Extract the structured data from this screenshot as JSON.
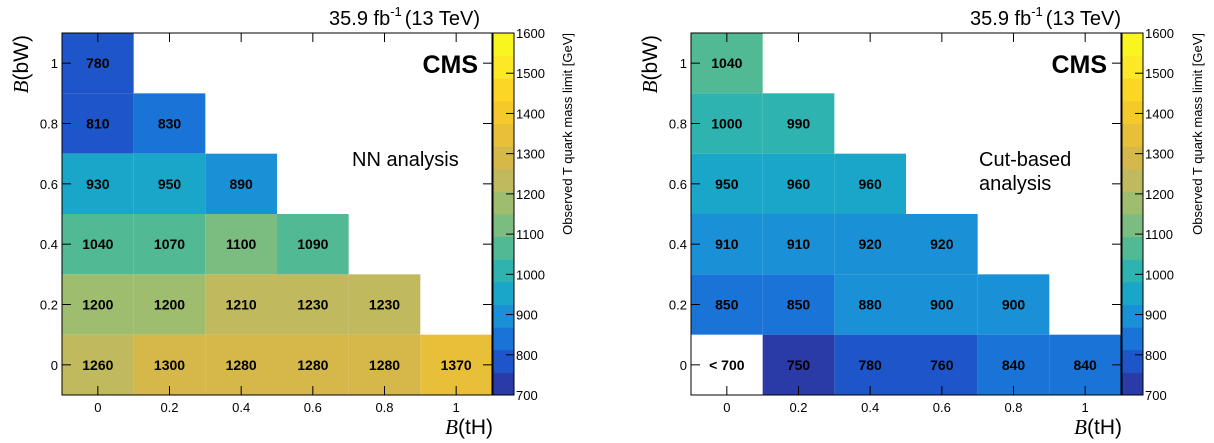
{
  "chart_data": [
    {
      "type": "heatmap",
      "experiment": "CMS",
      "luminosity": {
        "value": "35.9 fb",
        "exponent": "-1",
        "energy": "(13 TeV)"
      },
      "annotation": [
        "NN analysis"
      ],
      "xlabel": {
        "symbol": "B",
        "arg": "(tH)"
      },
      "ylabel": {
        "symbol": "B",
        "arg": "(bW)"
      },
      "xticks": [
        "0",
        "0.2",
        "0.4",
        "0.6",
        "0.8",
        "1"
      ],
      "yticks": [
        "0",
        "0.2",
        "0.4",
        "0.6",
        "0.8",
        "1"
      ],
      "colorbar_label": "Observed T quark mass limit [GeV]",
      "colorbar_ticks": [
        "700",
        "800",
        "900",
        "1000",
        "1100",
        "1200",
        "1300",
        "1400",
        "1500",
        "1600"
      ],
      "zlim": [
        700,
        1600
      ],
      "cells": [
        {
          "x": 0,
          "y": 1,
          "label": "780",
          "value": 780
        },
        {
          "x": 0,
          "y": 0.8,
          "label": "810",
          "value": 810
        },
        {
          "x": 0.2,
          "y": 0.8,
          "label": "830",
          "value": 830
        },
        {
          "x": 0,
          "y": 0.6,
          "label": "930",
          "value": 930
        },
        {
          "x": 0.2,
          "y": 0.6,
          "label": "950",
          "value": 950
        },
        {
          "x": 0.4,
          "y": 0.6,
          "label": "890",
          "value": 890
        },
        {
          "x": 0,
          "y": 0.4,
          "label": "1040",
          "value": 1040
        },
        {
          "x": 0.2,
          "y": 0.4,
          "label": "1070",
          "value": 1070
        },
        {
          "x": 0.4,
          "y": 0.4,
          "label": "1100",
          "value": 1100
        },
        {
          "x": 0.6,
          "y": 0.4,
          "label": "1090",
          "value": 1090
        },
        {
          "x": 0,
          "y": 0.2,
          "label": "1200",
          "value": 1200
        },
        {
          "x": 0.2,
          "y": 0.2,
          "label": "1200",
          "value": 1200
        },
        {
          "x": 0.4,
          "y": 0.2,
          "label": "1210",
          "value": 1210
        },
        {
          "x": 0.6,
          "y": 0.2,
          "label": "1230",
          "value": 1230
        },
        {
          "x": 0.8,
          "y": 0.2,
          "label": "1230",
          "value": 1230
        },
        {
          "x": 0,
          "y": 0,
          "label": "1260",
          "value": 1260
        },
        {
          "x": 0.2,
          "y": 0,
          "label": "1300",
          "value": 1300
        },
        {
          "x": 0.4,
          "y": 0,
          "label": "1280",
          "value": 1280
        },
        {
          "x": 0.6,
          "y": 0,
          "label": "1280",
          "value": 1280
        },
        {
          "x": 0.8,
          "y": 0,
          "label": "1280",
          "value": 1280
        },
        {
          "x": 1,
          "y": 0,
          "label": "1370",
          "value": 1370
        }
      ]
    },
    {
      "type": "heatmap",
      "experiment": "CMS",
      "luminosity": {
        "value": "35.9 fb",
        "exponent": "-1",
        "energy": "(13 TeV)"
      },
      "annotation": [
        "Cut-based",
        "analysis"
      ],
      "xlabel": {
        "symbol": "B",
        "arg": "(tH)"
      },
      "ylabel": {
        "symbol": "B",
        "arg": "(bW)"
      },
      "xticks": [
        "0",
        "0.2",
        "0.4",
        "0.6",
        "0.8",
        "1"
      ],
      "yticks": [
        "0",
        "0.2",
        "0.4",
        "0.6",
        "0.8",
        "1"
      ],
      "colorbar_label": "Observed T quark mass limit [GeV]",
      "colorbar_ticks": [
        "700",
        "800",
        "900",
        "1000",
        "1100",
        "1200",
        "1300",
        "1400",
        "1500",
        "1600"
      ],
      "zlim": [
        700,
        1600
      ],
      "cells": [
        {
          "x": 0,
          "y": 1,
          "label": "1040",
          "value": 1040
        },
        {
          "x": 0,
          "y": 0.8,
          "label": "1000",
          "value": 1000
        },
        {
          "x": 0.2,
          "y": 0.8,
          "label": "990",
          "value": 990
        },
        {
          "x": 0,
          "y": 0.6,
          "label": "950",
          "value": 950
        },
        {
          "x": 0.2,
          "y": 0.6,
          "label": "960",
          "value": 960
        },
        {
          "x": 0.4,
          "y": 0.6,
          "label": "960",
          "value": 960
        },
        {
          "x": 0,
          "y": 0.4,
          "label": "910",
          "value": 910
        },
        {
          "x": 0.2,
          "y": 0.4,
          "label": "910",
          "value": 910
        },
        {
          "x": 0.4,
          "y": 0.4,
          "label": "920",
          "value": 920
        },
        {
          "x": 0.6,
          "y": 0.4,
          "label": "920",
          "value": 920
        },
        {
          "x": 0,
          "y": 0.2,
          "label": "850",
          "value": 850
        },
        {
          "x": 0.2,
          "y": 0.2,
          "label": "850",
          "value": 850
        },
        {
          "x": 0.4,
          "y": 0.2,
          "label": "880",
          "value": 880
        },
        {
          "x": 0.6,
          "y": 0.2,
          "label": "900",
          "value": 900
        },
        {
          "x": 0.8,
          "y": 0.2,
          "label": "900",
          "value": 900
        },
        {
          "x": 0,
          "y": 0,
          "label": "< 700",
          "value": null
        },
        {
          "x": 0.2,
          "y": 0,
          "label": "750",
          "value": 750
        },
        {
          "x": 0.4,
          "y": 0,
          "label": "780",
          "value": 780
        },
        {
          "x": 0.6,
          "y": 0,
          "label": "760",
          "value": 760
        },
        {
          "x": 0.8,
          "y": 0,
          "label": "840",
          "value": 840
        },
        {
          "x": 1,
          "y": 0,
          "label": "840",
          "value": 840
        }
      ]
    }
  ],
  "colors": {
    "palette": [
      "#2a3aa6",
      "#1e55c8",
      "#1a74d8",
      "#1a90d6",
      "#1aa6c8",
      "#2fb3b0",
      "#52b995",
      "#7bbc80",
      "#9fbd6e",
      "#c0b95d",
      "#d6b84a",
      "#e8bf38",
      "#f4c92a",
      "#fbd624",
      "#fce824",
      "#f9f51f"
    ],
    "text": "#000000",
    "frame": "#000000"
  }
}
